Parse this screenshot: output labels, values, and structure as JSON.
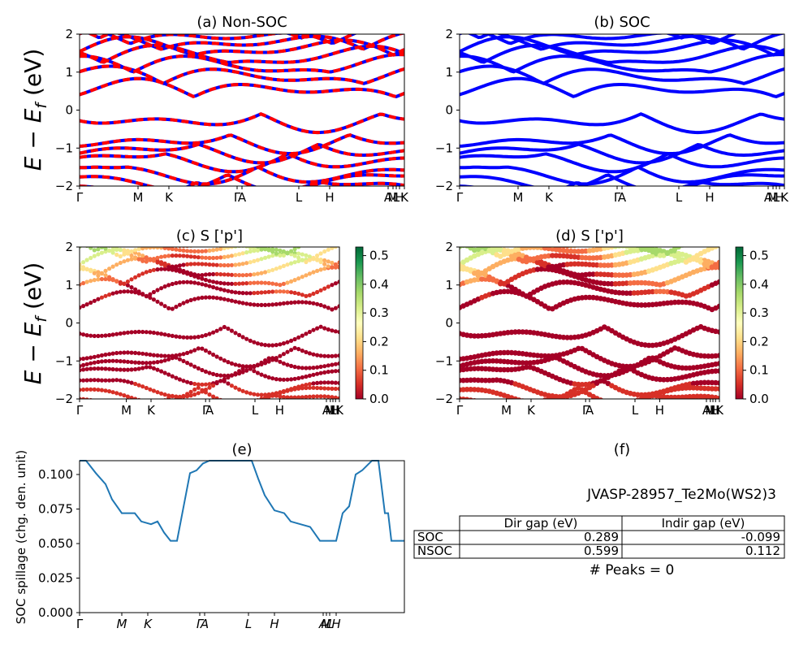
{
  "figure": {
    "ylabel_main": "E − E",
    "ylabel_sub": "f",
    "ylabel_unit": " (eV)"
  },
  "panels": {
    "a": {
      "title": "(a) Non-SOC"
    },
    "b": {
      "title": "(b) SOC"
    },
    "c": {
      "title": "(c)  S ['p']"
    },
    "d": {
      "title": "(d) S ['p']"
    },
    "e": {
      "title": "(e)"
    },
    "f": {
      "title": "(f)"
    }
  },
  "colors": {
    "blue": "#0000ff",
    "red": "#ff0000",
    "spill_line": "#1f77b4"
  },
  "band_ticks": [
    "Γ",
    "M",
    "K",
    "Γ",
    "A",
    "L",
    "H",
    "A",
    "M",
    "L",
    "H",
    "K"
  ],
  "band_ylim": [
    -2,
    2
  ],
  "band_yticks": [
    "−2",
    "−1",
    "0",
    "1",
    "2"
  ],
  "colorbar": {
    "ticks": [
      "0.0",
      "0.1",
      "0.2",
      "0.3",
      "0.4",
      "0.5"
    ],
    "max": 0.53
  },
  "chart_data": [
    {
      "type": "line",
      "id": "a",
      "title": "(a) Non-SOC",
      "description_series": [
        "blue",
        "red dashed"
      ],
      "xticklabels": [
        "Γ",
        "M",
        "K",
        "Γ",
        "A",
        "L",
        "H",
        "A",
        "M",
        "L",
        "H",
        "K"
      ],
      "ylim": [
        -2,
        2
      ]
    },
    {
      "type": "line",
      "id": "b",
      "title": "(b) SOC",
      "xticklabels": [
        "Γ",
        "M",
        "K",
        "Γ",
        "A",
        "L",
        "H",
        "A",
        "M",
        "L",
        "H",
        "K"
      ],
      "ylim": [
        -2,
        2
      ]
    },
    {
      "type": "scatter",
      "id": "c",
      "title": "(c)  S ['p']",
      "colorbar_range": [
        0,
        0.53
      ],
      "ylim": [
        -2,
        2
      ]
    },
    {
      "type": "scatter",
      "id": "d",
      "title": "(d) S ['p']",
      "colorbar_range": [
        0,
        0.53
      ],
      "ylim": [
        -2,
        2
      ]
    },
    {
      "type": "line",
      "id": "e",
      "title": "(e)",
      "ylabel": "SOC spillage (chg. den. unit)",
      "ylim": [
        0,
        0.11
      ],
      "yticks": [
        "0.000",
        "0.025",
        "0.050",
        "0.075",
        "0.100"
      ],
      "xticklabels": [
        "Γ",
        "M",
        "K",
        "Γ",
        "A",
        "L",
        "H",
        "A",
        "M",
        "L",
        "H"
      ],
      "x": [
        0,
        0.02,
        0.05,
        0.08,
        0.1,
        0.13,
        0.17,
        0.19,
        0.22,
        0.24,
        0.26,
        0.28,
        0.29,
        0.3,
        0.34,
        0.36,
        0.38,
        0.4,
        0.44,
        0.47,
        0.5,
        0.53,
        0.55,
        0.57,
        0.6,
        0.63,
        0.65,
        0.68,
        0.71,
        0.74,
        0.76,
        0.79,
        0.81,
        0.83,
        0.85,
        0.87,
        0.9,
        0.91,
        0.92,
        0.94,
        0.95,
        0.96,
        1.0
      ],
      "y": [
        0.11,
        0.11,
        0.101,
        0.093,
        0.082,
        0.072,
        0.072,
        0.066,
        0.064,
        0.066,
        0.058,
        0.052,
        0.052,
        0.052,
        0.101,
        0.103,
        0.108,
        0.11,
        0.11,
        0.11,
        0.11,
        0.11,
        0.097,
        0.085,
        0.074,
        0.072,
        0.066,
        0.064,
        0.062,
        0.052,
        0.052,
        0.052,
        0.072,
        0.077,
        0.1,
        0.103,
        0.11,
        0.11,
        0.11,
        0.072,
        0.072,
        0.052,
        0.052
      ]
    }
  ],
  "info": {
    "material": "JVASP-28957_Te2Mo(WS2)3",
    "table": {
      "headers": [
        "",
        "Dir gap (eV)",
        "Indir gap (eV)"
      ],
      "rows": [
        {
          "label": "SOC",
          "dir": "0.289",
          "indir": "-0.099"
        },
        {
          "label": "NSOC",
          "dir": "0.599",
          "indir": "0.112"
        }
      ]
    },
    "peaks": "# Peaks = 0"
  }
}
